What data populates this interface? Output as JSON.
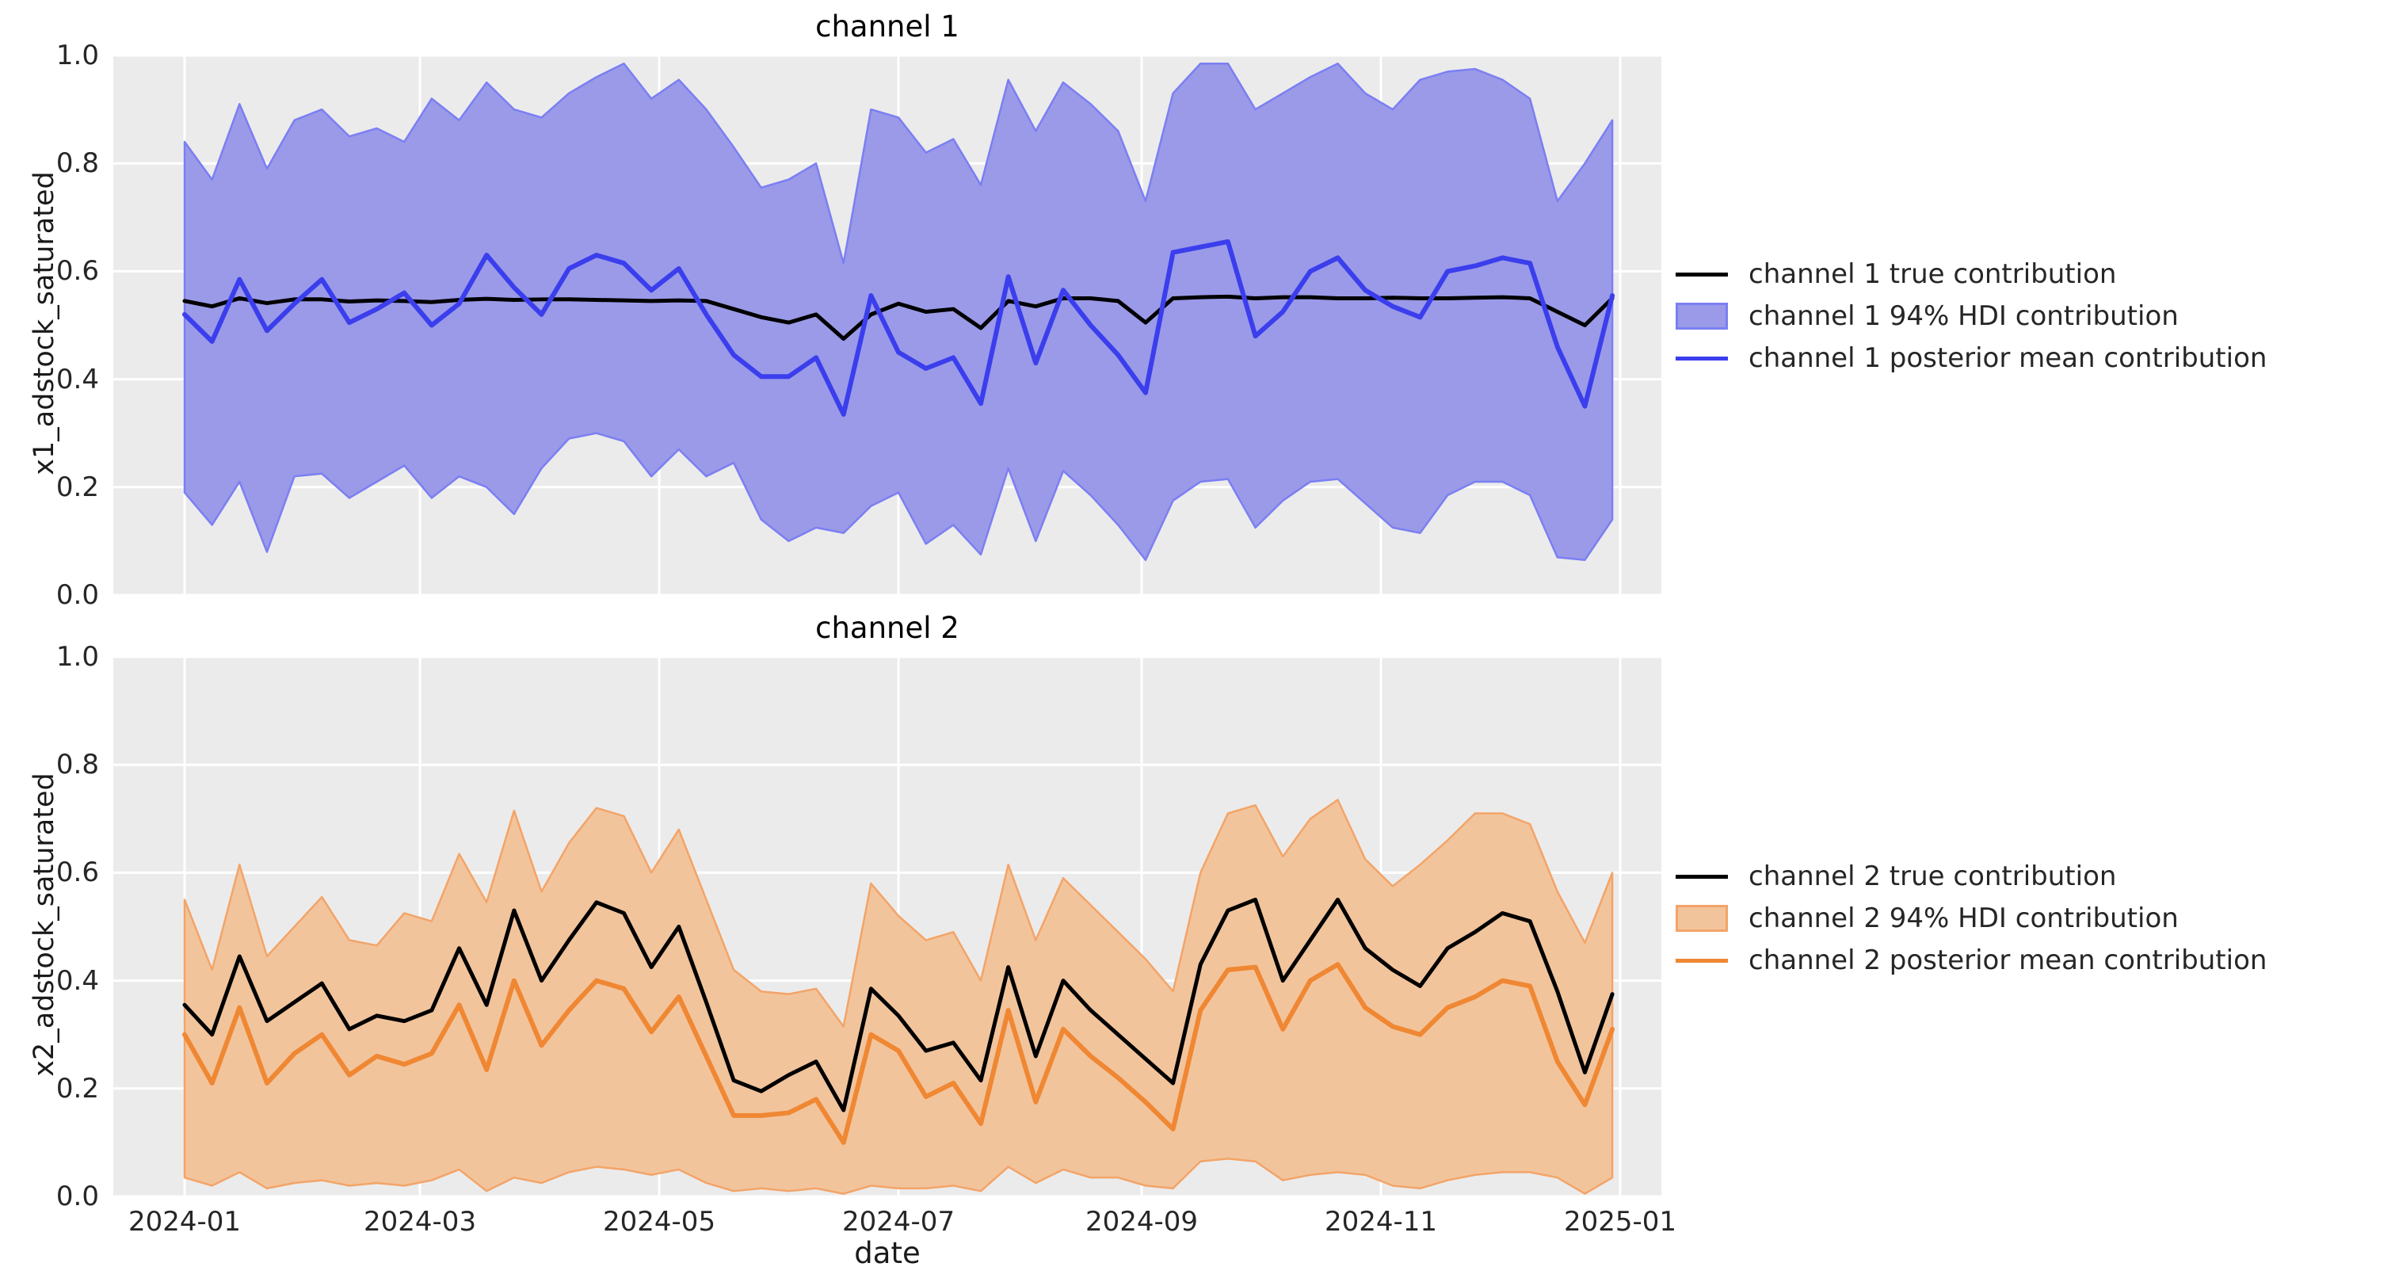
{
  "figure": {
    "title_top": "channel 1",
    "title_bottom": "channel 2"
  },
  "colors": {
    "plot_bg": "#ebebeb",
    "grid": "#ffffff",
    "true_line": "#000000",
    "blue_line": "#3b3eec",
    "blue_band_fill": "#9a9ae8",
    "blue_band_edge": "#7b7ff2",
    "orange_line": "#ef8733",
    "orange_band_fill": "#f2c49c",
    "orange_band_edge": "#f3a468",
    "text": "#262626"
  },
  "chart_data": [
    {
      "type": "line",
      "title": "channel 1",
      "ylabel": "x1_adstock_saturated",
      "xlabel": "",
      "ylim": [
        0.0,
        1.0
      ],
      "grid": true,
      "legend_position": "center right outside",
      "yticks": [
        "0.0",
        "0.2",
        "0.4",
        "0.6",
        "0.8",
        "1.0"
      ],
      "xticks": [
        {
          "label": "2024-01",
          "day": 0
        },
        {
          "label": "2024-03",
          "day": 60
        },
        {
          "label": "2024-05",
          "day": 121
        },
        {
          "label": "2024-07",
          "day": 182
        },
        {
          "label": "2024-09",
          "day": 244
        },
        {
          "label": "2024-11",
          "day": 305
        },
        {
          "label": "2025-01",
          "day": 366
        }
      ],
      "x": [
        "2024-01-01",
        "2024-01-08",
        "2024-01-15",
        "2024-01-22",
        "2024-01-29",
        "2024-02-05",
        "2024-02-12",
        "2024-02-19",
        "2024-02-26",
        "2024-03-04",
        "2024-03-11",
        "2024-03-18",
        "2024-03-25",
        "2024-04-01",
        "2024-04-08",
        "2024-04-15",
        "2024-04-22",
        "2024-04-29",
        "2024-05-06",
        "2024-05-13",
        "2024-05-20",
        "2024-05-27",
        "2024-06-03",
        "2024-06-10",
        "2024-06-17",
        "2024-06-24",
        "2024-07-01",
        "2024-07-08",
        "2024-07-15",
        "2024-07-22",
        "2024-07-29",
        "2024-08-05",
        "2024-08-12",
        "2024-08-19",
        "2024-08-26",
        "2024-09-02",
        "2024-09-09",
        "2024-09-16",
        "2024-09-23",
        "2024-09-30",
        "2024-10-07",
        "2024-10-14",
        "2024-10-21",
        "2024-10-28",
        "2024-11-04",
        "2024-11-11",
        "2024-11-18",
        "2024-11-25",
        "2024-12-02",
        "2024-12-09",
        "2024-12-16",
        "2024-12-23",
        "2024-12-30"
      ],
      "series": [
        {
          "name": "channel 1 true contribution",
          "color": "#000000",
          "width": 5,
          "values": [
            0.545,
            0.535,
            0.55,
            0.541,
            0.548,
            0.548,
            0.544,
            0.546,
            0.545,
            0.543,
            0.547,
            0.549,
            0.547,
            0.548,
            0.548,
            0.547,
            0.546,
            0.545,
            0.546,
            0.545,
            0.53,
            0.515,
            0.505,
            0.52,
            0.475,
            0.52,
            0.54,
            0.525,
            0.53,
            0.495,
            0.545,
            0.535,
            0.55,
            0.55,
            0.545,
            0.505,
            0.55,
            0.552,
            0.553,
            0.55,
            0.552,
            0.552,
            0.55,
            0.55,
            0.551,
            0.55,
            0.55,
            0.551,
            0.552,
            0.55,
            0.525,
            0.5,
            0.55
          ]
        },
        {
          "name": "channel 1 posterior mean contribution",
          "color": "#3b3eec",
          "width": 6,
          "values": [
            0.52,
            0.47,
            0.585,
            0.49,
            0.54,
            0.585,
            0.505,
            0.53,
            0.56,
            0.5,
            0.54,
            0.63,
            0.57,
            0.52,
            0.605,
            0.63,
            0.615,
            0.565,
            0.605,
            0.52,
            0.445,
            0.405,
            0.405,
            0.44,
            0.335,
            0.555,
            0.45,
            0.42,
            0.44,
            0.355,
            0.59,
            0.43,
            0.565,
            0.5,
            0.445,
            0.375,
            0.635,
            0.645,
            0.655,
            0.48,
            0.525,
            0.6,
            0.625,
            0.565,
            0.535,
            0.515,
            0.6,
            0.61,
            0.625,
            0.615,
            0.46,
            0.35,
            0.555
          ]
        }
      ],
      "band": {
        "name": "channel 1 94% HDI contribution",
        "fill": "#9a9ae8",
        "edge": "#7b7ff2",
        "upper": [
          0.84,
          0.77,
          0.91,
          0.79,
          0.88,
          0.9,
          0.85,
          0.865,
          0.84,
          0.92,
          0.88,
          0.95,
          0.9,
          0.885,
          0.93,
          0.96,
          0.985,
          0.92,
          0.955,
          0.9,
          0.83,
          0.755,
          0.77,
          0.8,
          0.615,
          0.9,
          0.885,
          0.82,
          0.845,
          0.76,
          0.955,
          0.86,
          0.95,
          0.91,
          0.86,
          0.73,
          0.93,
          0.985,
          0.985,
          0.9,
          0.93,
          0.96,
          0.985,
          0.93,
          0.9,
          0.955,
          0.97,
          0.975,
          0.955,
          0.92,
          0.73,
          0.8,
          0.88
        ],
        "lower": [
          0.19,
          0.13,
          0.21,
          0.08,
          0.22,
          0.225,
          0.18,
          0.21,
          0.24,
          0.18,
          0.22,
          0.2,
          0.15,
          0.235,
          0.29,
          0.3,
          0.285,
          0.22,
          0.27,
          0.22,
          0.245,
          0.14,
          0.1,
          0.125,
          0.115,
          0.165,
          0.19,
          0.095,
          0.13,
          0.075,
          0.235,
          0.1,
          0.23,
          0.185,
          0.13,
          0.065,
          0.175,
          0.21,
          0.215,
          0.125,
          0.175,
          0.21,
          0.215,
          0.17,
          0.125,
          0.115,
          0.185,
          0.21,
          0.21,
          0.185,
          0.07,
          0.065,
          0.14
        ]
      },
      "legend": [
        {
          "label": "channel 1 true contribution",
          "type": "line",
          "color": "#000000"
        },
        {
          "label": "channel 1 94% HDI contribution",
          "type": "patch",
          "fill": "#9a9ae8",
          "edge": "#7b7ff2"
        },
        {
          "label": "channel 1 posterior mean contribution",
          "type": "line",
          "color": "#3b3eec"
        }
      ]
    },
    {
      "type": "line",
      "title": "channel 2",
      "ylabel": "x2_adstock_saturated",
      "xlabel": "date",
      "ylim": [
        0.0,
        1.0
      ],
      "grid": true,
      "legend_position": "center right outside",
      "yticks": [
        "0.0",
        "0.2",
        "0.4",
        "0.6",
        "0.8",
        "1.0"
      ],
      "xticks": [
        {
          "label": "2024-01",
          "day": 0
        },
        {
          "label": "2024-03",
          "day": 60
        },
        {
          "label": "2024-05",
          "day": 121
        },
        {
          "label": "2024-07",
          "day": 182
        },
        {
          "label": "2024-09",
          "day": 244
        },
        {
          "label": "2024-11",
          "day": 305
        },
        {
          "label": "2025-01",
          "day": 366
        }
      ],
      "x": [
        "2024-01-01",
        "2024-01-08",
        "2024-01-15",
        "2024-01-22",
        "2024-01-29",
        "2024-02-05",
        "2024-02-12",
        "2024-02-19",
        "2024-02-26",
        "2024-03-04",
        "2024-03-11",
        "2024-03-18",
        "2024-03-25",
        "2024-04-01",
        "2024-04-08",
        "2024-04-15",
        "2024-04-22",
        "2024-04-29",
        "2024-05-06",
        "2024-05-13",
        "2024-05-20",
        "2024-05-27",
        "2024-06-03",
        "2024-06-10",
        "2024-06-17",
        "2024-06-24",
        "2024-07-01",
        "2024-07-08",
        "2024-07-15",
        "2024-07-22",
        "2024-07-29",
        "2024-08-05",
        "2024-08-12",
        "2024-08-19",
        "2024-08-26",
        "2024-09-02",
        "2024-09-09",
        "2024-09-16",
        "2024-09-23",
        "2024-09-30",
        "2024-10-07",
        "2024-10-14",
        "2024-10-21",
        "2024-10-28",
        "2024-11-04",
        "2024-11-11",
        "2024-11-18",
        "2024-11-25",
        "2024-12-02",
        "2024-12-09",
        "2024-12-16",
        "2024-12-23",
        "2024-12-30"
      ],
      "series": [
        {
          "name": "channel 2 true contribution",
          "color": "#000000",
          "width": 5,
          "values": [
            0.355,
            0.3,
            0.445,
            0.325,
            0.36,
            0.395,
            0.31,
            0.335,
            0.325,
            0.345,
            0.46,
            0.355,
            0.53,
            0.4,
            0.475,
            0.545,
            0.525,
            0.425,
            0.5,
            0.36,
            0.215,
            0.195,
            0.225,
            0.25,
            0.16,
            0.385,
            0.335,
            0.27,
            0.285,
            0.215,
            0.425,
            0.26,
            0.4,
            0.345,
            0.3,
            0.255,
            0.21,
            0.43,
            0.53,
            0.55,
            0.4,
            0.475,
            0.55,
            0.46,
            0.42,
            0.39,
            0.46,
            0.49,
            0.525,
            0.51,
            0.38,
            0.23,
            0.375
          ]
        },
        {
          "name": "channel 2 posterior mean contribution",
          "color": "#ef8733",
          "width": 6,
          "values": [
            0.3,
            0.21,
            0.35,
            0.21,
            0.265,
            0.3,
            0.225,
            0.26,
            0.245,
            0.265,
            0.355,
            0.235,
            0.4,
            0.28,
            0.345,
            0.4,
            0.385,
            0.305,
            0.37,
            0.26,
            0.15,
            0.15,
            0.155,
            0.18,
            0.1,
            0.3,
            0.27,
            0.185,
            0.21,
            0.135,
            0.345,
            0.175,
            0.31,
            0.26,
            0.22,
            0.175,
            0.125,
            0.345,
            0.42,
            0.425,
            0.31,
            0.4,
            0.43,
            0.35,
            0.315,
            0.3,
            0.35,
            0.37,
            0.4,
            0.39,
            0.25,
            0.17,
            0.31
          ]
        }
      ],
      "band": {
        "name": "channel 2 94% HDI contribution",
        "fill": "#f2c49c",
        "edge": "#f3a468",
        "upper": [
          0.55,
          0.42,
          0.615,
          0.445,
          0.5,
          0.555,
          0.475,
          0.465,
          0.525,
          0.51,
          0.635,
          0.545,
          0.715,
          0.565,
          0.655,
          0.72,
          0.705,
          0.6,
          0.68,
          0.55,
          0.42,
          0.38,
          0.375,
          0.385,
          0.315,
          0.58,
          0.52,
          0.475,
          0.49,
          0.4,
          0.615,
          0.475,
          0.59,
          0.54,
          0.49,
          0.44,
          0.38,
          0.6,
          0.71,
          0.725,
          0.63,
          0.7,
          0.735,
          0.625,
          0.575,
          0.615,
          0.66,
          0.71,
          0.71,
          0.69,
          0.565,
          0.47,
          0.6
        ],
        "lower": [
          0.035,
          0.02,
          0.045,
          0.015,
          0.025,
          0.03,
          0.02,
          0.025,
          0.02,
          0.03,
          0.05,
          0.01,
          0.035,
          0.025,
          0.045,
          0.055,
          0.05,
          0.04,
          0.05,
          0.025,
          0.01,
          0.015,
          0.01,
          0.015,
          0.005,
          0.02,
          0.015,
          0.015,
          0.02,
          0.01,
          0.055,
          0.025,
          0.05,
          0.035,
          0.035,
          0.02,
          0.015,
          0.065,
          0.07,
          0.065,
          0.03,
          0.04,
          0.045,
          0.04,
          0.02,
          0.015,
          0.03,
          0.04,
          0.045,
          0.045,
          0.035,
          0.005,
          0.035
        ]
      },
      "legend": [
        {
          "label": "channel 2 true contribution",
          "type": "line",
          "color": "#000000"
        },
        {
          "label": "channel 2 94% HDI contribution",
          "type": "patch",
          "fill": "#f2c49c",
          "edge": "#f3a468"
        },
        {
          "label": "channel 2 posterior mean contribution",
          "type": "line",
          "color": "#ef8733"
        }
      ]
    }
  ]
}
